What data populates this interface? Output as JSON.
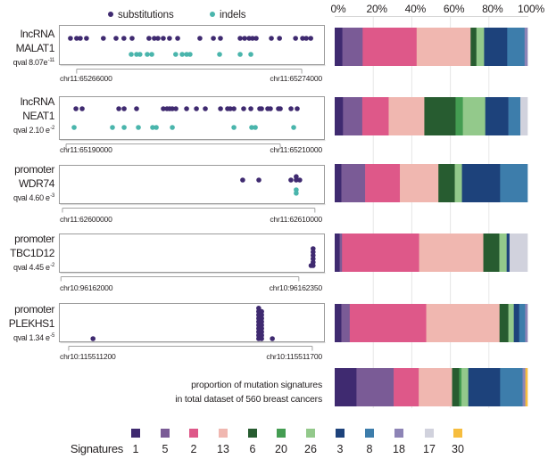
{
  "legend_top": {
    "substitutions_label": "substitutions",
    "substitutions_color": "#3f2a70",
    "indels_label": "indels",
    "indels_color": "#4ab5ac"
  },
  "total_label": {
    "line1": "proportion of mutation signatures",
    "line2": "in total dataset of 560 breast cancers"
  },
  "signature_legend": {
    "title": "Signatures",
    "items": [
      {
        "id": "1",
        "color": "#3f2a70"
      },
      {
        "id": "5",
        "color": "#7a5b96"
      },
      {
        "id": "2",
        "color": "#de5889"
      },
      {
        "id": "13",
        "color": "#f0b7b0"
      },
      {
        "id": "6",
        "color": "#275c30"
      },
      {
        "id": "20",
        "color": "#449d52"
      },
      {
        "id": "26",
        "color": "#93c98b"
      },
      {
        "id": "3",
        "color": "#1d427b"
      },
      {
        "id": "8",
        "color": "#3d7dab"
      },
      {
        "id": "18",
        "color": "#8d84b6"
      },
      {
        "id": "17",
        "color": "#d1d2dd"
      },
      {
        "id": "30",
        "color": "#f6bd3e"
      }
    ]
  },
  "chart_data": [
    {
      "type": "scatter",
      "region_type": "lncRNA",
      "gene": "MALAT1",
      "qval_text": "qval 8.07e",
      "qval_exp": "-11",
      "xlim": [
        65265370,
        65274790
      ],
      "x_ticks": [
        65266000,
        65274000
      ],
      "x_tick_labels": [
        "chr11:65266000",
        "chr11:65274000"
      ],
      "series": [
        {
          "name": "substitutions",
          "color": "#3f2a70",
          "x": [
            65265780,
            65266000,
            65266130,
            65266350,
            65266950,
            65267400,
            65267680,
            65267970,
            65268570,
            65268760,
            65268890,
            65269080,
            65269300,
            65269590,
            65270380,
            65270860,
            65271110,
            65271810,
            65271970,
            65272130,
            65272250,
            65272380,
            65272920,
            65273210,
            65273780,
            65274030,
            65274160,
            65274320
          ]
        },
        {
          "name": "indels",
          "color": "#4ab5ac",
          "x": [
            65267940,
            65268130,
            65268250,
            65268510,
            65268670,
            65269520,
            65269750,
            65269910,
            65270030,
            65271080,
            65271810,
            65272190
          ]
        }
      ]
    },
    {
      "type": "scatter",
      "region_type": "lncRNA",
      "gene": "NEAT1",
      "qval_text": "qval 2.10 e",
      "qval_exp": "-2",
      "xlim": [
        65189330,
        65214080
      ],
      "x_ticks": [
        65190000,
        65210000
      ],
      "x_tick_labels": [
        "chr11:65190000",
        "chr11:65210000"
      ],
      "series": [
        {
          "name": "substitutions",
          "color": "#3f2a70",
          "x": [
            65190920,
            65191500,
            65194920,
            65195420,
            65196580,
            65199080,
            65199420,
            65199670,
            65199920,
            65200250,
            65201250,
            65202170,
            65203000,
            65204420,
            65205080,
            65205330,
            65205670,
            65206580,
            65207250,
            65208080,
            65208250,
            65208830,
            65209080,
            65209830,
            65210000,
            65211000,
            65211580
          ]
        },
        {
          "name": "indels",
          "color": "#4ab5ac",
          "x": [
            65190750,
            65194330,
            65195420,
            65196750,
            65198080,
            65198420,
            65199920,
            65205670,
            65207330,
            65207670,
            65211250
          ]
        }
      ]
    },
    {
      "type": "scatter",
      "region_type": "promoter",
      "gene": "WDR74",
      "qval_text": "qval 4.60 e",
      "qval_exp": "-3",
      "xlim": [
        62599860,
        62610360
      ],
      "x_ticks": [
        62600000,
        62610000
      ],
      "x_tick_labels": [
        "chr11:62600000",
        "chr11:62610000"
      ],
      "series": [
        {
          "name": "substitutions",
          "color": "#3f2a70",
          "x": [
            62607140,
            62607780,
            62609050,
            62609260,
            62609260,
            62609400
          ]
        },
        {
          "name": "indels",
          "color": "#4ab5ac",
          "x": [
            62609260,
            62609260
          ]
        }
      ]
    },
    {
      "type": "scatter",
      "region_type": "promoter",
      "gene": "TBC1D12",
      "qval_text": "qval 4.45 e",
      "qval_exp": "-2",
      "xlim": [
        96161997,
        96162387
      ],
      "x_ticks": [
        96162000,
        96162350
      ],
      "x_tick_labels": [
        "chr10:96162000",
        "chr10:96162350"
      ],
      "series": [
        {
          "name": "substitutions",
          "color": "#3f2a70",
          "x": [
            96162368,
            96162371,
            96162371,
            96162371,
            96162371,
            96162371,
            96162371
          ]
        }
      ]
    },
    {
      "type": "scatter",
      "region_type": "promoter",
      "gene": "PLEKHS1",
      "qval_text": "qval 1.34 e",
      "qval_exp": "-5",
      "xlim": [
        115511180,
        115511724
      ],
      "x_ticks": [
        115511200,
        115511700
      ],
      "x_tick_labels": [
        "chr10:115511200",
        "chr10:115511700"
      ],
      "series": [
        {
          "name": "substitutions",
          "color": "#3f2a70",
          "x": [
            115511250,
            115511590,
            115511590,
            115511590,
            115511590,
            115511590,
            115511590,
            115511590,
            115511590,
            115511590,
            115511590,
            115511596,
            115511596,
            115511596,
            115511596,
            115511596,
            115511596,
            115511596,
            115511596,
            115511596,
            115511618
          ]
        }
      ]
    },
    {
      "type": "bar",
      "stacked": true,
      "orientation": "horizontal",
      "title": "proportion of mutation signatures",
      "categories": [
        "lncRNA MALAT1",
        "lncRNA NEAT1",
        "promoter WDR74",
        "promoter TBC1D12",
        "promoter PLEKHS1",
        "total dataset of 560 breast cancers"
      ],
      "xlim": [
        0,
        100
      ],
      "x_ticks": [
        0,
        20,
        40,
        60,
        80,
        100
      ],
      "x_tick_labels": [
        "0%",
        "20%",
        "40%",
        "60%",
        "80%",
        "100%"
      ],
      "grid": true,
      "legend": "bottom",
      "series": [
        {
          "name": "1",
          "color": "#3f2a70",
          "values": [
            4.0,
            4.3,
            3.5,
            2.6,
            3.5,
            11.3
          ]
        },
        {
          "name": "5",
          "color": "#7a5b96",
          "values": [
            10.5,
            10.0,
            12.3,
            1.2,
            4.3,
            19.3
          ]
        },
        {
          "name": "2",
          "color": "#de5889",
          "values": [
            28.0,
            13.7,
            18.0,
            40.0,
            39.7,
            13.0
          ]
        },
        {
          "name": "13",
          "color": "#f0b7b0",
          "values": [
            28.0,
            18.5,
            20.0,
            33.3,
            38.0,
            17.3
          ]
        },
        {
          "name": "6",
          "color": "#275c30",
          "values": [
            3.0,
            16.2,
            8.5,
            8.3,
            4.6,
            3.7
          ]
        },
        {
          "name": "20",
          "color": "#449d52",
          "values": [
            0,
            3.8,
            0,
            0,
            0,
            1.2
          ]
        },
        {
          "name": "26",
          "color": "#93c98b",
          "values": [
            4.0,
            11.6,
            3.7,
            3.8,
            2.8,
            3.5
          ]
        },
        {
          "name": "3",
          "color": "#1d427b",
          "values": [
            12.0,
            12.0,
            19.8,
            1.5,
            2.8,
            16.5
          ]
        },
        {
          "name": "8",
          "color": "#3d7dab",
          "values": [
            9.0,
            6.2,
            14.2,
            0,
            3.1,
            11.7
          ]
        },
        {
          "name": "18",
          "color": "#8d84b6",
          "values": [
            1.5,
            0,
            0,
            0,
            1.2,
            1.4
          ]
        },
        {
          "name": "17",
          "color": "#d1d2dd",
          "values": [
            0,
            3.7,
            0,
            9.3,
            0,
            0
          ]
        },
        {
          "name": "30",
          "color": "#f6bd3e",
          "values": [
            0,
            0,
            0,
            0,
            0,
            1.1
          ]
        }
      ]
    }
  ]
}
